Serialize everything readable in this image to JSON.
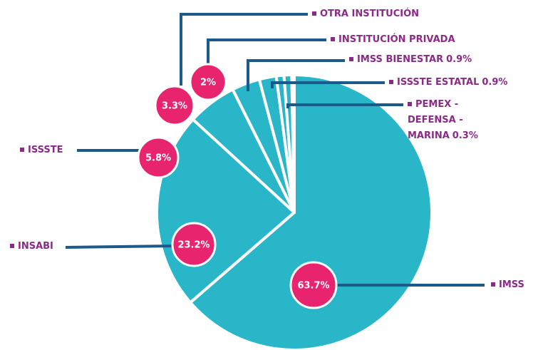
{
  "chart_data": {
    "type": "pie",
    "categories": [
      "IMSS",
      "INSABI",
      "ISSSTE",
      "OTRA INSTITUCIÓN",
      "INSTITUCIÓN PRIVADA",
      "IMSS BIENESTAR",
      "ISSSTE ESTATAL",
      "PEMEX -DEFENSA -MARINA"
    ],
    "values": [
      63.7,
      23.2,
      5.8,
      3.3,
      2,
      0.9,
      0.9,
      0.3
    ],
    "value_labels": [
      "63.7%",
      "23.2%",
      "5.8%",
      "3.3%",
      "2%",
      "0.9%",
      "0.9%",
      "0.3%"
    ],
    "color": "#29b6c8"
  }
}
